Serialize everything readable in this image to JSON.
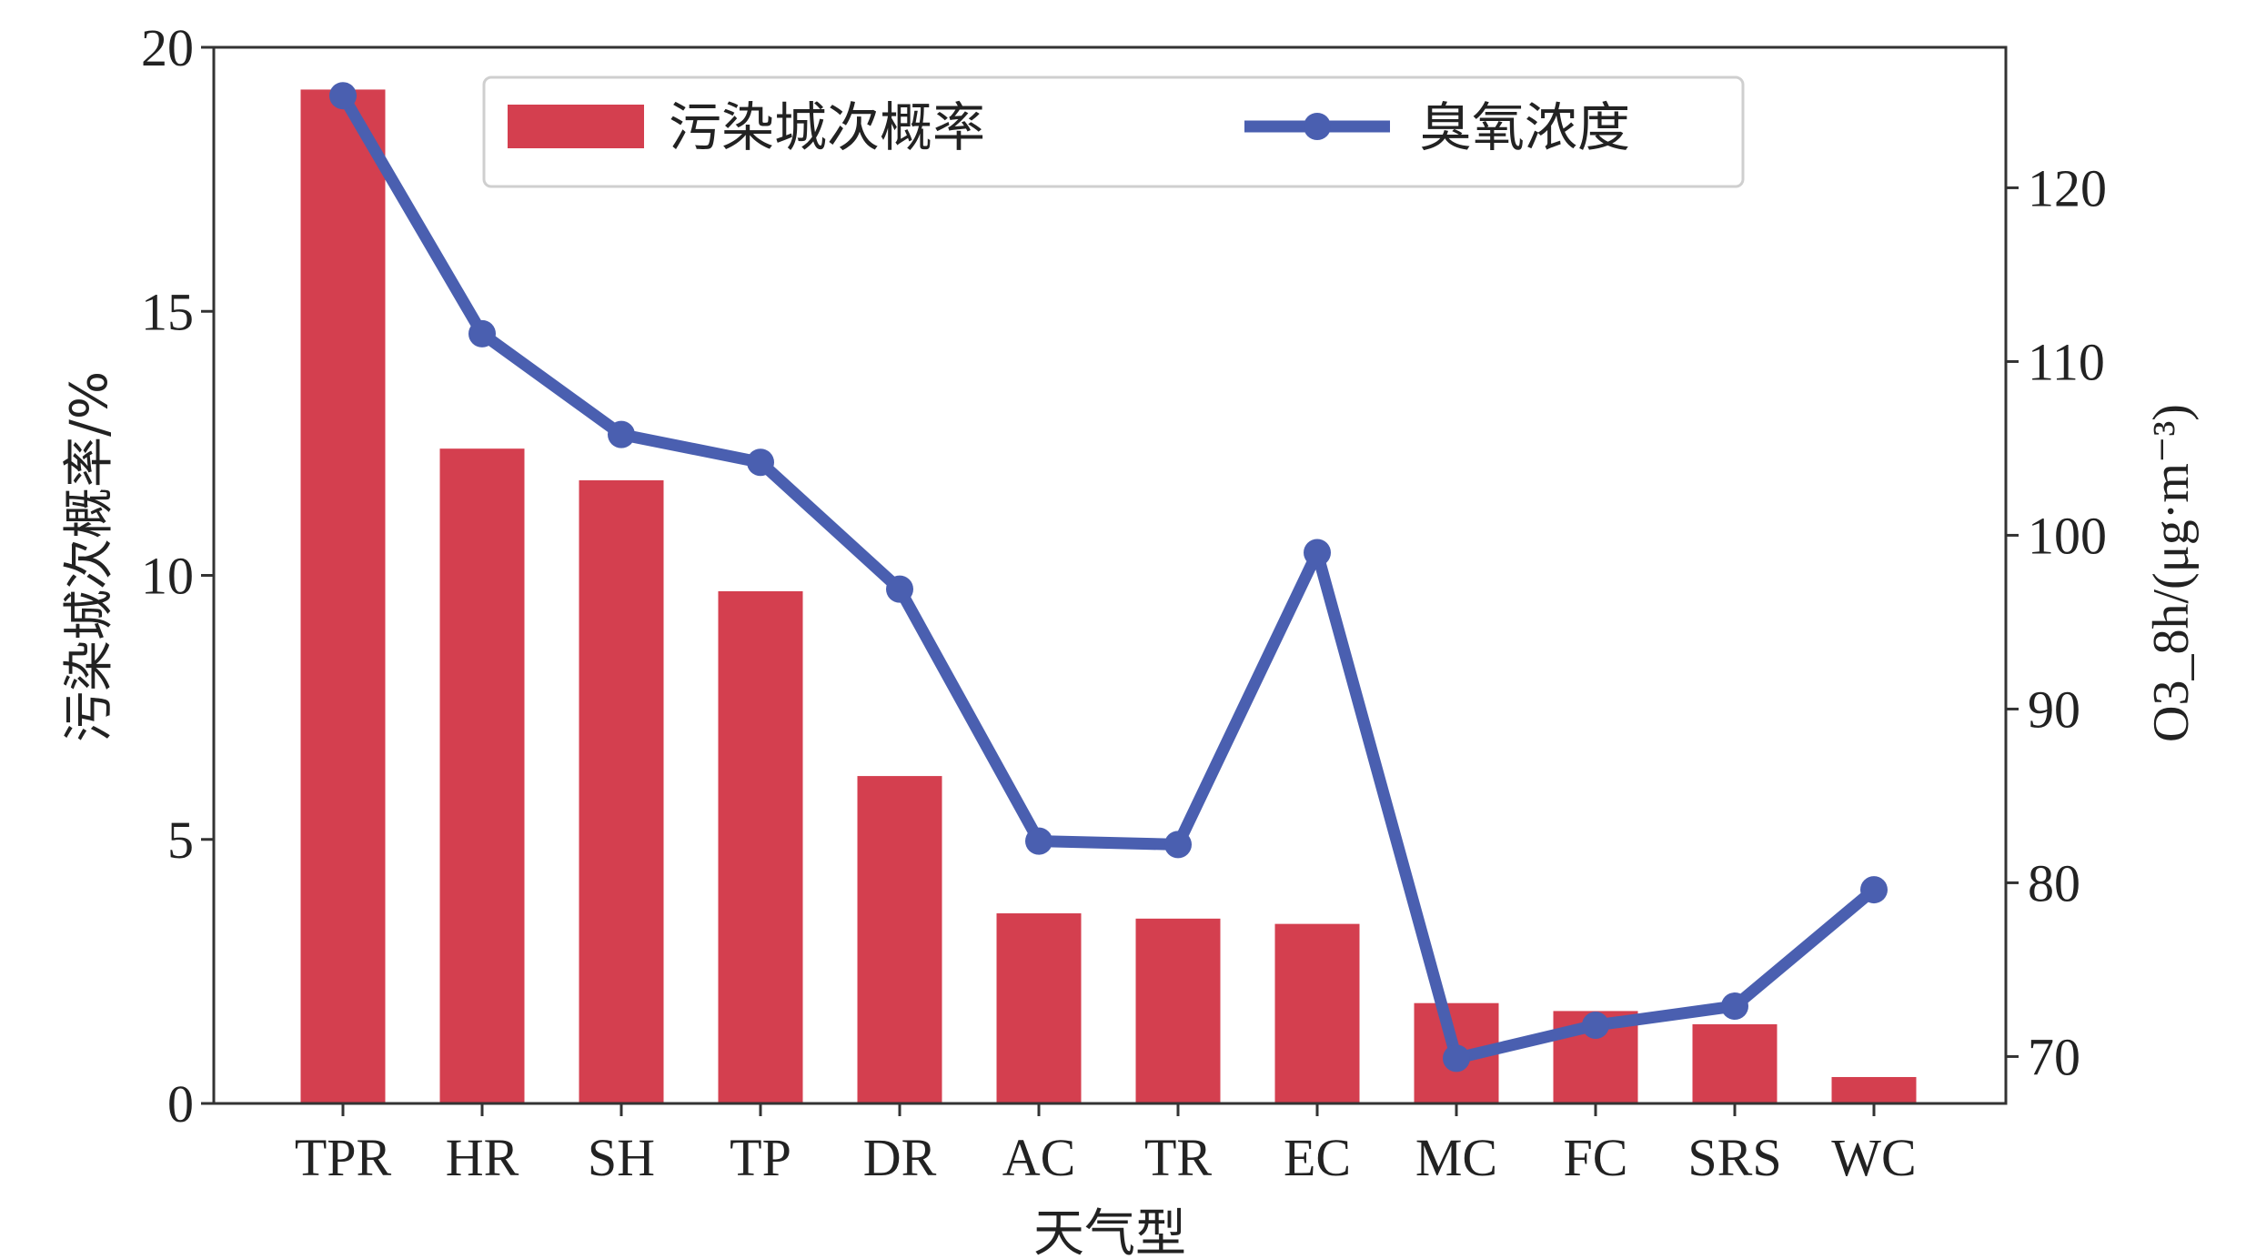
{
  "chart_data": {
    "type": "bar+line",
    "title": "",
    "categories": [
      "TPR",
      "HR",
      "SH",
      "TP",
      "DR",
      "AC",
      "TR",
      "EC",
      "MC",
      "FC",
      "SRS",
      "WC"
    ],
    "xlabel": "天气型",
    "series": [
      {
        "name": "污染城次概率",
        "type": "bar",
        "axis": "left",
        "color": "#d43f4f",
        "values": [
          19.2,
          12.4,
          11.8,
          9.7,
          6.2,
          3.6,
          3.5,
          3.4,
          1.9,
          1.75,
          1.5,
          0.5
        ]
      },
      {
        "name": "臭氧浓度",
        "type": "line",
        "axis": "right",
        "color": "#4a5fb0",
        "values": [
          125.3,
          111.6,
          105.8,
          104.2,
          96.9,
          82.4,
          82.2,
          99.0,
          69.9,
          71.8,
          72.9,
          79.6
        ]
      }
    ],
    "y_left": {
      "label": "污染城次概率/%",
      "ylim": [
        0,
        20
      ],
      "ticks": [
        "0",
        "5",
        "10",
        "15",
        "20"
      ]
    },
    "y_right": {
      "label": "O3_8h/(μg·m⁻³)",
      "ticks": [
        "70",
        "80",
        "90",
        "100",
        "110",
        "120"
      ]
    },
    "legend": {
      "placement": "top-center"
    },
    "grid": false
  }
}
